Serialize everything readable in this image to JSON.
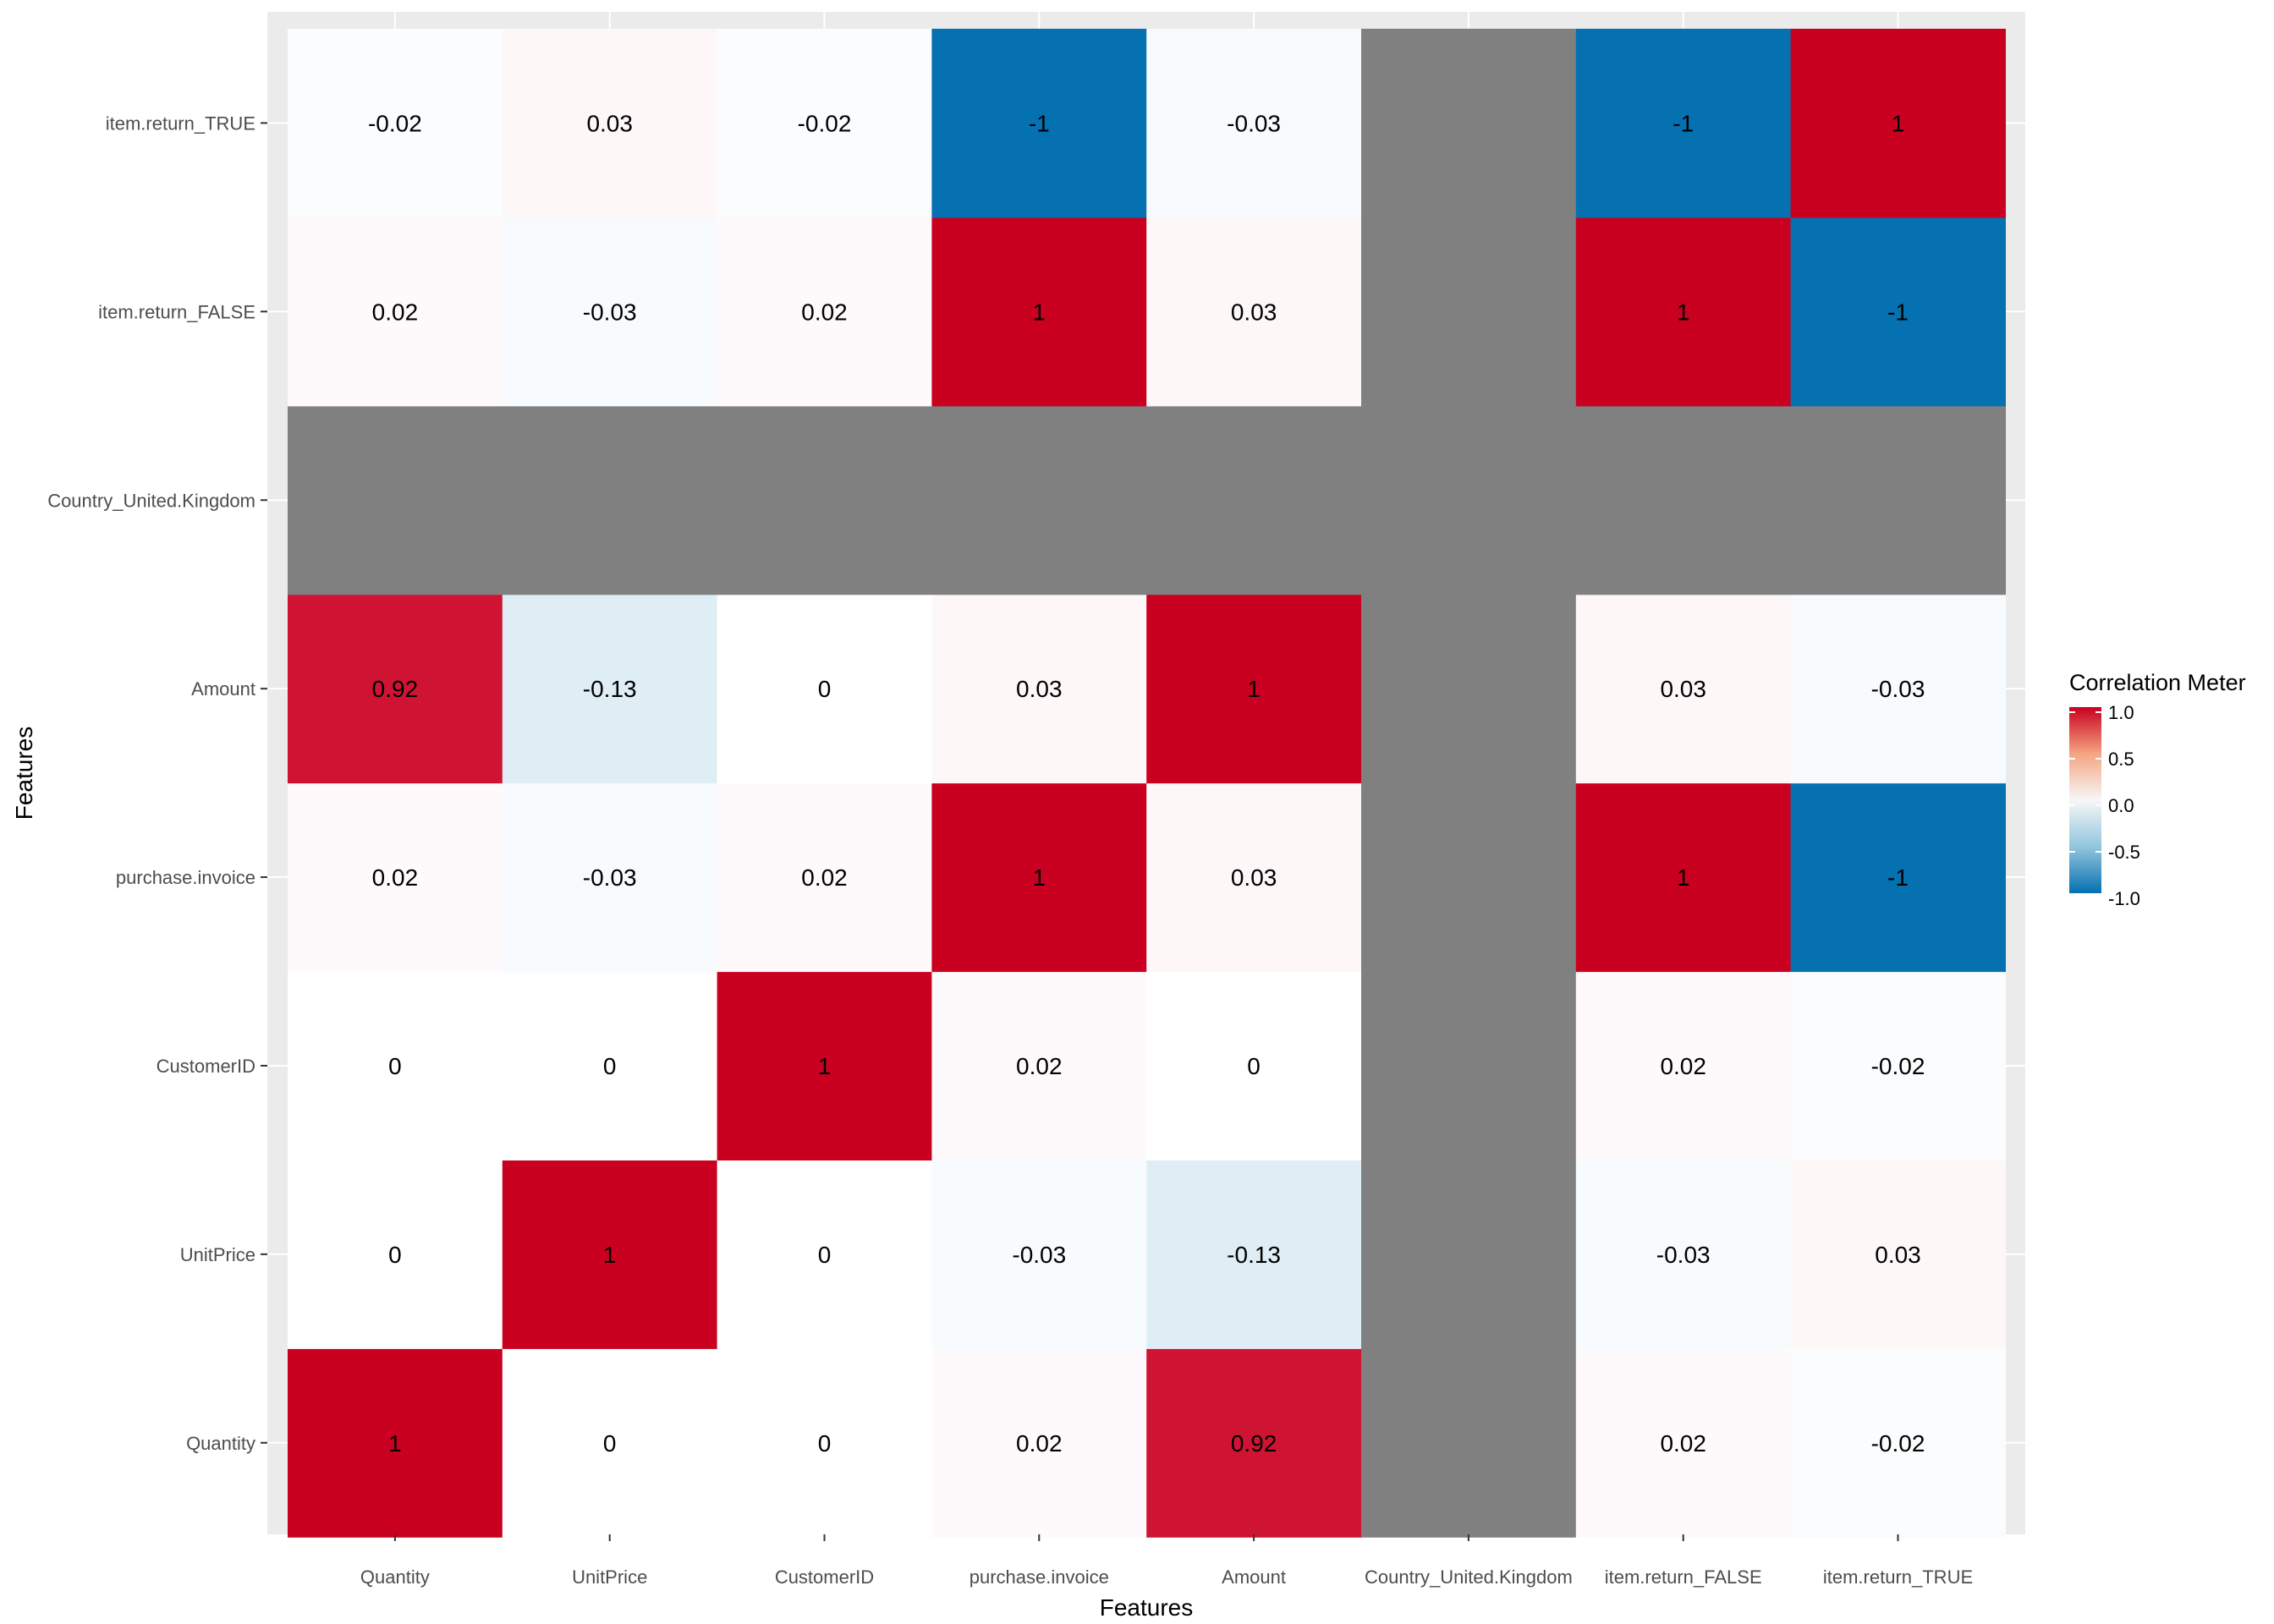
{
  "chart_data": {
    "type": "heatmap",
    "title": "",
    "xlabel": "Features",
    "ylabel": "Features",
    "x_categories": [
      "Quantity",
      "UnitPrice",
      "CustomerID",
      "purchase.invoice",
      "Amount",
      "Country_United.Kingdom",
      "item.return_FALSE",
      "item.return_TRUE"
    ],
    "y_categories": [
      "Quantity",
      "UnitPrice",
      "CustomerID",
      "purchase.invoice",
      "Amount",
      "Country_United.Kingdom",
      "item.return_FALSE",
      "item.return_TRUE"
    ],
    "values": [
      [
        1,
        0,
        0,
        0.02,
        0.92,
        null,
        0.02,
        -0.02
      ],
      [
        0,
        1,
        0,
        -0.03,
        -0.13,
        null,
        -0.03,
        0.03
      ],
      [
        0,
        0,
        1,
        0.02,
        0,
        null,
        0.02,
        -0.02
      ],
      [
        0.02,
        -0.03,
        0.02,
        1,
        0.03,
        null,
        1,
        -1
      ],
      [
        0.92,
        -0.13,
        0,
        0.03,
        1,
        null,
        0.03,
        -0.03
      ],
      [
        null,
        null,
        null,
        null,
        null,
        null,
        null,
        null
      ],
      [
        0.02,
        -0.03,
        0.02,
        1,
        0.03,
        null,
        1,
        -1
      ],
      [
        -0.02,
        0.03,
        -0.02,
        -1,
        -0.03,
        null,
        -1,
        1
      ]
    ],
    "value_range": [
      -1,
      1
    ],
    "na_color": "#808080",
    "legend": {
      "title": "Correlation Meter",
      "position": "right",
      "ticks": [
        1.0,
        0.5,
        0.0,
        -0.5,
        -1.0
      ],
      "tick_labels": [
        "1.0",
        "0.5",
        "0.0",
        "-0.5",
        "-1.0"
      ]
    },
    "colors": {
      "high": "#ca0020",
      "mid": "#ffffff",
      "low": "#0571b0",
      "panel": "#ebebeb",
      "grid": "#ffffff"
    }
  }
}
